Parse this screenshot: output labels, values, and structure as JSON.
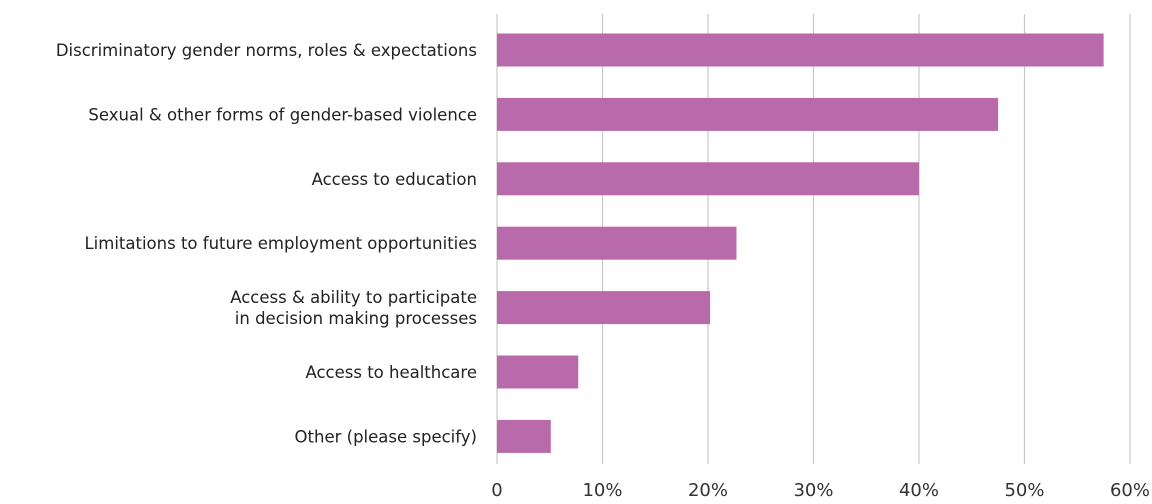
{
  "chart_data": {
    "type": "bar",
    "orientation": "horizontal",
    "categories": [
      [
        "Discriminatory gender norms, roles & expectations"
      ],
      [
        "Sexual & other forms of gender-based violence"
      ],
      [
        "Access to education"
      ],
      [
        "Limitations to future employment opportunities"
      ],
      [
        "Access & ability to participate",
        "in decision making processes"
      ],
      [
        "Access to healthcare"
      ],
      [
        "Other (please specify)"
      ]
    ],
    "values": [
      57.5,
      47.5,
      40,
      22.7,
      20.2,
      7.7,
      5.1
    ],
    "value_unit": "%",
    "xlim": [
      0,
      60
    ],
    "x_ticks": [
      0,
      10,
      20,
      30,
      40,
      50,
      60
    ],
    "x_tick_labels": [
      "0",
      "10%",
      "20%",
      "30%",
      "40%",
      "50%",
      "60%"
    ],
    "title": "",
    "xlabel": "",
    "ylabel": "",
    "grid": "vertical",
    "legend": "none",
    "colors": {
      "bar": "#b96aab",
      "grid": "#c8c8c8",
      "text": "#222222"
    }
  }
}
